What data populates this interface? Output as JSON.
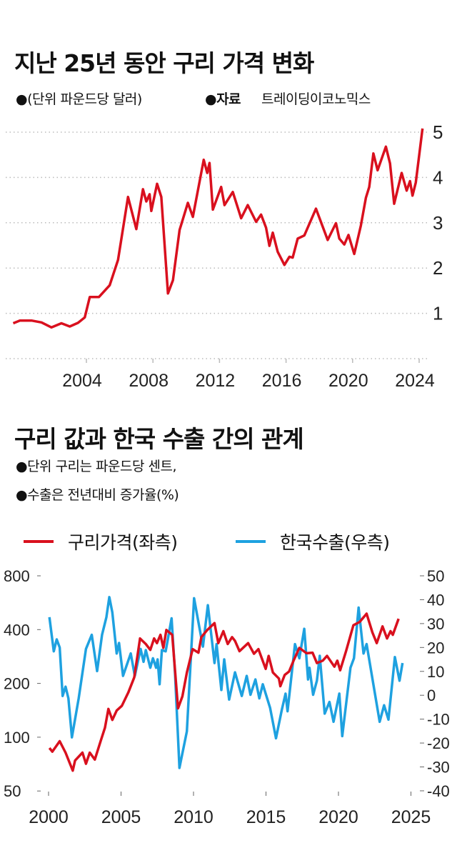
{
  "top": {
    "title": "지난 25년 동안 구리 가격 변화",
    "unit_note": "●(단위 파운드당 달러)",
    "source_label": "●자료",
    "source": "트레이딩이코노믹스"
  },
  "bottom": {
    "title": "구리 값과 한국 수출 간의 관계",
    "note1": "●단위 구리는 파운드당 센트,",
    "note2": "●수출은 전년대비 증가율(%)",
    "legend": [
      "구리가격(좌측)",
      "한국수출(우측)"
    ]
  },
  "colors": {
    "copper": "#d9101e",
    "exports": "#1ea1e0",
    "grid": "#bbbbbb"
  },
  "chart_data": [
    {
      "type": "line",
      "title": "지난 25년 동안 구리 가격 변화",
      "ylabel": "파운드당 달러",
      "xlim": [
        1999.6,
        2024.4
      ],
      "ylim": [
        0,
        5
      ],
      "x_ticks": [
        "2004",
        "2008",
        "2012",
        "2016",
        "2020",
        "2024"
      ],
      "y_ticks": [
        "1",
        "2",
        "3",
        "4",
        "5"
      ],
      "y_axis_side": "right",
      "grid": "horizontal dotted",
      "series": [
        {
          "color": "#d9101e",
          "points": [
            [
              1999.6,
              0.78
            ],
            [
              2000.0,
              0.84
            ],
            [
              2000.7,
              0.84
            ],
            [
              2001.3,
              0.8
            ],
            [
              2001.9,
              0.69
            ],
            [
              2002.5,
              0.78
            ],
            [
              2003.0,
              0.71
            ],
            [
              2003.5,
              0.79
            ],
            [
              2003.9,
              0.91
            ],
            [
              2004.2,
              1.36
            ],
            [
              2004.75,
              1.36
            ],
            [
              2005.4,
              1.62
            ],
            [
              2005.9,
              2.18
            ],
            [
              2006.5,
              3.57
            ],
            [
              2007.0,
              2.86
            ],
            [
              2007.4,
              3.74
            ],
            [
              2007.6,
              3.47
            ],
            [
              2007.8,
              3.63
            ],
            [
              2007.9,
              3.26
            ],
            [
              2008.25,
              3.86
            ],
            [
              2008.5,
              3.57
            ],
            [
              2008.9,
              1.44
            ],
            [
              2009.2,
              1.73
            ],
            [
              2009.6,
              2.84
            ],
            [
              2010.1,
              3.44
            ],
            [
              2010.4,
              3.13
            ],
            [
              2011.05,
              4.39
            ],
            [
              2011.26,
              4.1
            ],
            [
              2011.4,
              4.32
            ],
            [
              2011.6,
              3.29
            ],
            [
              2012.1,
              3.79
            ],
            [
              2012.3,
              3.39
            ],
            [
              2012.8,
              3.68
            ],
            [
              2013.3,
              3.1
            ],
            [
              2013.7,
              3.39
            ],
            [
              2014.2,
              3.02
            ],
            [
              2014.5,
              3.18
            ],
            [
              2014.8,
              2.89
            ],
            [
              2015.0,
              2.49
            ],
            [
              2015.2,
              2.78
            ],
            [
              2015.5,
              2.36
            ],
            [
              2015.9,
              2.07
            ],
            [
              2016.2,
              2.25
            ],
            [
              2016.4,
              2.23
            ],
            [
              2016.7,
              2.65
            ],
            [
              2017.1,
              2.72
            ],
            [
              2017.8,
              3.31
            ],
            [
              2018.5,
              2.62
            ],
            [
              2019.0,
              2.99
            ],
            [
              2019.2,
              2.65
            ],
            [
              2019.5,
              2.52
            ],
            [
              2019.75,
              2.73
            ],
            [
              2020.1,
              2.31
            ],
            [
              2020.5,
              2.94
            ],
            [
              2020.8,
              3.55
            ],
            [
              2021.0,
              3.79
            ],
            [
              2021.25,
              4.53
            ],
            [
              2021.5,
              4.16
            ],
            [
              2022.0,
              4.68
            ],
            [
              2022.25,
              4.31
            ],
            [
              2022.5,
              3.42
            ],
            [
              2022.95,
              4.1
            ],
            [
              2023.25,
              3.71
            ],
            [
              2023.45,
              3.92
            ],
            [
              2023.6,
              3.6
            ],
            [
              2023.8,
              3.89
            ],
            [
              2024.2,
              5.08
            ]
          ]
        }
      ]
    },
    {
      "type": "line",
      "title": "구리 값과 한국 수출 간의 관계",
      "xlim": [
        2000,
        2025
      ],
      "x_ticks": [
        "2000",
        "2005",
        "2010",
        "2015",
        "2020",
        "2025"
      ],
      "y_left": {
        "scale": "log",
        "range": [
          50,
          800
        ],
        "ticks": [
          "800",
          "400",
          "200",
          "100",
          "50"
        ]
      },
      "y_right": {
        "scale": "linear",
        "range": [
          -40,
          50
        ],
        "ticks": [
          "50",
          "40",
          "30",
          "20",
          "10",
          "0",
          "-10",
          "-20",
          "-30",
          "-40"
        ]
      },
      "legend_placement": "top",
      "series": [
        {
          "name": "구리가격(좌측)",
          "axis": "left",
          "color": "#d9101e",
          "points": [
            [
              2000.06,
              87
            ],
            [
              2000.26,
              83
            ],
            [
              2000.77,
              95
            ],
            [
              2001.17,
              82
            ],
            [
              2001.67,
              65
            ],
            [
              2001.83,
              74
            ],
            [
              2002.34,
              82
            ],
            [
              2002.58,
              71
            ],
            [
              2002.84,
              82
            ],
            [
              2003.19,
              75
            ],
            [
              2003.59,
              95
            ],
            [
              2003.89,
              113
            ],
            [
              2004.13,
              144
            ],
            [
              2004.4,
              125
            ],
            [
              2004.7,
              141
            ],
            [
              2005.06,
              150
            ],
            [
              2005.5,
              178
            ],
            [
              2005.91,
              216
            ],
            [
              2006.31,
              357
            ],
            [
              2006.71,
              332
            ],
            [
              2007.02,
              308
            ],
            [
              2007.28,
              357
            ],
            [
              2007.48,
              336
            ],
            [
              2007.72,
              374
            ],
            [
              2007.92,
              316
            ],
            [
              2008.13,
              398
            ],
            [
              2008.53,
              374
            ],
            [
              2008.93,
              145
            ],
            [
              2009.23,
              169
            ],
            [
              2009.54,
              230
            ],
            [
              2009.94,
              311
            ],
            [
              2010.34,
              297
            ],
            [
              2010.54,
              363
            ],
            [
              2010.95,
              398
            ],
            [
              2011.45,
              435
            ],
            [
              2011.71,
              336
            ],
            [
              2012.06,
              392
            ],
            [
              2012.36,
              332
            ],
            [
              2012.66,
              363
            ],
            [
              2012.86,
              346
            ],
            [
              2013.17,
              303
            ],
            [
              2013.77,
              336
            ],
            [
              2014.17,
              293
            ],
            [
              2014.48,
              311
            ],
            [
              2014.98,
              241
            ],
            [
              2015.18,
              285
            ],
            [
              2015.48,
              230
            ],
            [
              2015.89,
              213
            ],
            [
              2015.99,
              193
            ],
            [
              2016.29,
              223
            ],
            [
              2016.59,
              233
            ],
            [
              2016.9,
              268
            ],
            [
              2017.3,
              316
            ],
            [
              2017.8,
              295
            ],
            [
              2018.21,
              297
            ],
            [
              2018.51,
              260
            ],
            [
              2018.91,
              268
            ],
            [
              2019.21,
              285
            ],
            [
              2019.72,
              248
            ],
            [
              2019.92,
              268
            ],
            [
              2020.12,
              237
            ],
            [
              2020.52,
              303
            ],
            [
              2021.03,
              423
            ],
            [
              2021.47,
              442
            ],
            [
              2021.94,
              491
            ],
            [
              2022.34,
              386
            ],
            [
              2022.64,
              336
            ],
            [
              2023.04,
              417
            ],
            [
              2023.35,
              357
            ],
            [
              2023.59,
              392
            ],
            [
              2023.75,
              374
            ],
            [
              2024.15,
              460
            ]
          ]
        },
        {
          "name": "한국수출(우측)",
          "axis": "right",
          "color": "#1ea1e0",
          "points": [
            [
              2000.06,
              32.7
            ],
            [
              2000.36,
              18.4
            ],
            [
              2000.56,
              23.4
            ],
            [
              2000.77,
              20
            ],
            [
              2000.97,
              -0.3
            ],
            [
              2001.17,
              3.6
            ],
            [
              2001.37,
              -1.3
            ],
            [
              2001.61,
              -17.6
            ],
            [
              2002.08,
              -1.3
            ],
            [
              2002.58,
              19.4
            ],
            [
              2002.98,
              25.3
            ],
            [
              2003.35,
              10.1
            ],
            [
              2003.69,
              25.3
            ],
            [
              2003.99,
              32.7
            ],
            [
              2004.19,
              41.1
            ],
            [
              2004.4,
              34.7
            ],
            [
              2004.7,
              17.5
            ],
            [
              2004.86,
              21.9
            ],
            [
              2005.14,
              8.1
            ],
            [
              2005.67,
              17.5
            ],
            [
              2005.95,
              8.1
            ],
            [
              2006.35,
              19.4
            ],
            [
              2006.55,
              14
            ],
            [
              2006.71,
              18.9
            ],
            [
              2007.02,
              11.5
            ],
            [
              2007.2,
              15.5
            ],
            [
              2007.42,
              11.5
            ],
            [
              2007.52,
              15
            ],
            [
              2007.66,
              4.6
            ],
            [
              2007.82,
              18.9
            ],
            [
              2008.08,
              18.4
            ],
            [
              2008.49,
              32.2
            ],
            [
              2008.73,
              8.6
            ],
            [
              2009.03,
              -30.4
            ],
            [
              2009.54,
              -15.1
            ],
            [
              2010.04,
              40.6
            ],
            [
              2010.44,
              27.3
            ],
            [
              2010.65,
              20.4
            ],
            [
              2010.99,
              37.7
            ],
            [
              2011.45,
              13.5
            ],
            [
              2011.59,
              21.4
            ],
            [
              2011.92,
              2.2
            ],
            [
              2012.12,
              15
            ],
            [
              2012.46,
              -1.8
            ],
            [
              2012.86,
              9.6
            ],
            [
              2013.33,
              -0.3
            ],
            [
              2013.67,
              8.1
            ],
            [
              2013.93,
              0.2
            ],
            [
              2014.27,
              6.6
            ],
            [
              2014.54,
              -1.3
            ],
            [
              2014.78,
              4.6
            ],
            [
              2015.28,
              -5.2
            ],
            [
              2015.69,
              -18
            ],
            [
              2016.09,
              -6.2
            ],
            [
              2016.35,
              0.7
            ],
            [
              2016.49,
              -6.7
            ],
            [
              2017.0,
              21.4
            ],
            [
              2017.3,
              15.5
            ],
            [
              2017.64,
              27.8
            ],
            [
              2017.9,
              6.6
            ],
            [
              2018.0,
              11.5
            ],
            [
              2018.25,
              0.2
            ],
            [
              2018.51,
              6.1
            ],
            [
              2018.71,
              16.5
            ],
            [
              2019.05,
              -7.7
            ],
            [
              2019.38,
              -2.8
            ],
            [
              2019.66,
              -11.1
            ],
            [
              2020.06,
              0.7
            ],
            [
              2020.26,
              -17.1
            ],
            [
              2020.83,
              11.5
            ],
            [
              2021.07,
              15.5
            ],
            [
              2021.39,
              36.7
            ],
            [
              2021.73,
              17.5
            ],
            [
              2021.94,
              21.4
            ],
            [
              2022.84,
              -11.1
            ],
            [
              2023.15,
              -4.2
            ],
            [
              2023.45,
              -10.2
            ],
            [
              2023.89,
              16
            ],
            [
              2024.21,
              6.1
            ],
            [
              2024.42,
              13.5
            ]
          ]
        }
      ]
    }
  ]
}
